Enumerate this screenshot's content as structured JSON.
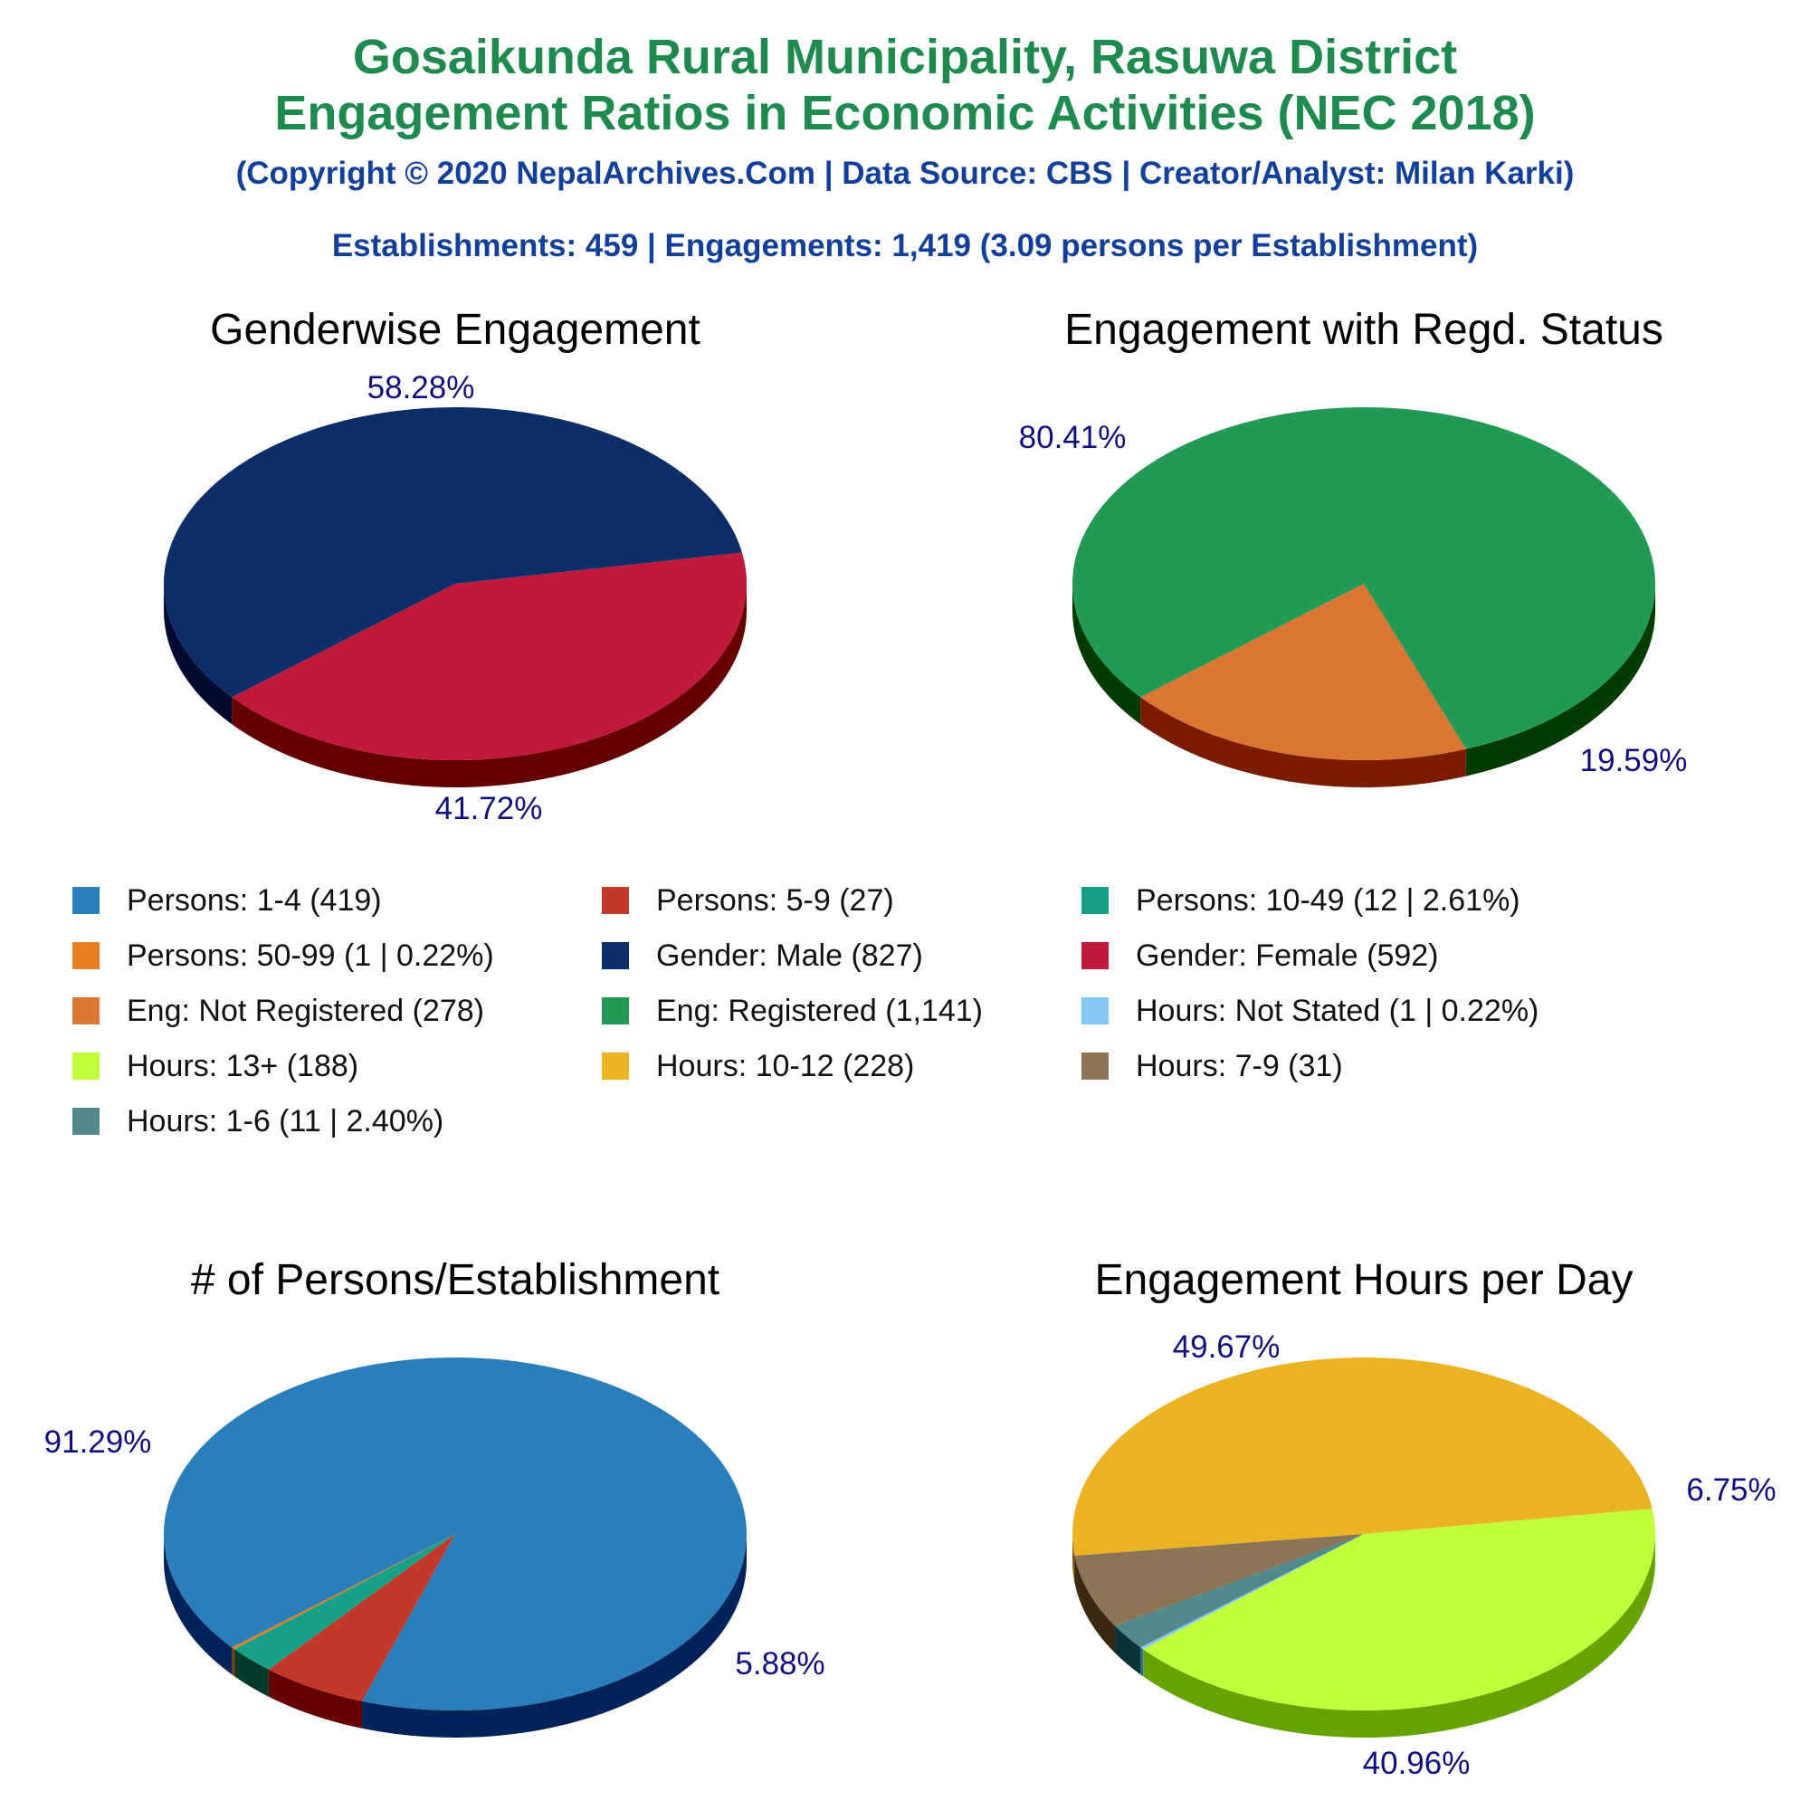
{
  "header": {
    "title_line1": "Gosaikunda Rural Municipality, Rasuwa District",
    "title_line2": "Engagement Ratios in Economic Activities (NEC 2018)",
    "copyright": "(Copyright © 2020 NepalArchives.Com | Data Source: CBS | Creator/Analyst: Milan Karki)",
    "summary": "Establishments: 459 | Engagements: 1,419 (3.09 persons per Establishment)"
  },
  "legend": [
    {
      "label": "Persons: 1-4 (419)",
      "color": "#2a7fba"
    },
    {
      "label": "Persons: 5-9 (27)",
      "color": "#c0392b"
    },
    {
      "label": "Persons: 10-49 (12 | 2.61%)",
      "color": "#17a085"
    },
    {
      "label": "Persons: 50-99 (1 | 0.22%)",
      "color": "#e67e22"
    },
    {
      "label": "Gender: Male (827)",
      "color": "#0b2d69"
    },
    {
      "label": "Gender: Female (592)",
      "color": "#c0193b"
    },
    {
      "label": "Eng: Not Registered (278)",
      "color": "#dc7633"
    },
    {
      "label": "Eng: Registered (1,141)",
      "color": "#229954"
    },
    {
      "label": "Hours: Not Stated (1 | 0.22%)",
      "color": "#85c9f7"
    },
    {
      "label": "Hours: 13+ (188)",
      "color": "#c2ff3b"
    },
    {
      "label": "Hours: 10-12 (228)",
      "color": "#ebb323"
    },
    {
      "label": "Hours: 7-9 (31)",
      "color": "#8c7556"
    },
    {
      "label": "Hours: 1-6 (11 | 2.40%)",
      "color": "#52898a"
    }
  ],
  "chart_data": [
    {
      "type": "pie",
      "title": "Genderwise Engagement",
      "slices": [
        {
          "name": "Gender: Female",
          "value": 41.72,
          "label": "41.72%",
          "color": "#c0193b",
          "side": "#640000"
        },
        {
          "name": "Gender: Male",
          "value": 58.28,
          "label": "58.28%",
          "color": "#0b2d69",
          "side": "#000a2e"
        }
      ]
    },
    {
      "type": "pie",
      "title": "Engagement with Regd. Status",
      "slices": [
        {
          "name": "Eng: Not Registered",
          "value": 19.59,
          "label": "19.59%",
          "color": "#dc7633",
          "side": "#7a1c00"
        },
        {
          "name": "Eng: Registered",
          "value": 80.41,
          "label": "80.41%",
          "color": "#229954",
          "side": "#003c00"
        }
      ]
    },
    {
      "type": "pie",
      "title": "# of Persons/Establishment",
      "slices": [
        {
          "name": "Persons: 50-99",
          "value": 0.22,
          "label": "",
          "color": "#e67e22",
          "side": "#7a3a00"
        },
        {
          "name": "Persons: 10-49",
          "value": 2.61,
          "label": "",
          "color": "#17a085",
          "side": "#003a2a"
        },
        {
          "name": "Persons: 5-9",
          "value": 5.88,
          "label": "5.88%",
          "color": "#c0392b",
          "side": "#640000"
        },
        {
          "name": "Persons: 1-4",
          "value": 91.29,
          "label": "91.29%",
          "color": "#2a7fba",
          "side": "#00235a"
        }
      ]
    },
    {
      "type": "pie",
      "title": "Engagement Hours per Day",
      "slices": [
        {
          "name": "Hours: Not Stated",
          "value": 0.22,
          "label": "",
          "color": "#85c9f7",
          "side": "#2a6a98"
        },
        {
          "name": "Hours: 13+",
          "value": 40.96,
          "label": "40.96%",
          "color": "#c2ff3b",
          "side": "#66a300"
        },
        {
          "name": "Hours: 10-12",
          "value": 49.67,
          "label": "49.67%",
          "color": "#ebb323",
          "side": "#8c5a00"
        },
        {
          "name": "Hours: 7-9",
          "value": 6.75,
          "label": "6.75%",
          "color": "#8c7556",
          "side": "#3a2810"
        },
        {
          "name": "Hours: 1-6",
          "value": 2.4,
          "label": "",
          "color": "#52898a",
          "side": "#0a3232"
        }
      ]
    }
  ]
}
